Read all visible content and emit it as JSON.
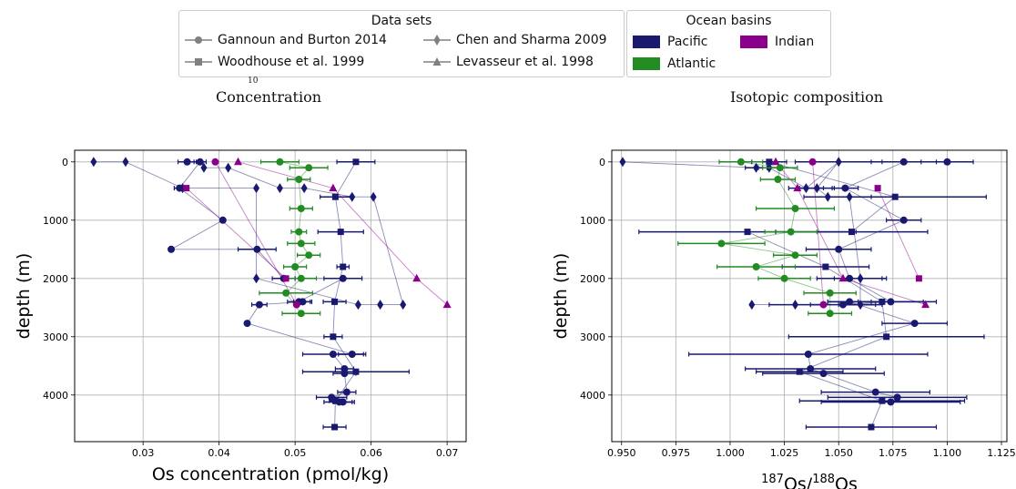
{
  "legend_datasets": {
    "title": "Data sets",
    "items": [
      {
        "label": "Gannoun and Burton 2014",
        "marker": "circle"
      },
      {
        "label": "Chen and Sharma 2009",
        "marker": "diamond"
      },
      {
        "label": "Woodhouse et al. 1999",
        "marker": "square"
      },
      {
        "label": "Levasseur et al. 1998",
        "marker": "triangle"
      }
    ]
  },
  "legend_basins": {
    "title": "Ocean basins",
    "items": [
      {
        "label": "Pacific",
        "color": "#191970"
      },
      {
        "label": "Indian",
        "color": "#8b008b"
      },
      {
        "label": "Atlantic",
        "color": "#228b22"
      }
    ]
  },
  "clipped_fragment": "10",
  "chart_data": [
    {
      "type": "scatter",
      "title": "Concentration",
      "xlabel": "Os concentration (pmol/kg)",
      "ylabel": "depth (m)",
      "xlim": [
        0.021,
        0.0725
      ],
      "ylim": [
        4800,
        -200
      ],
      "xticks": [
        "0.03",
        "0.04",
        "0.05",
        "0.06",
        "0.07"
      ],
      "yticks": [
        "0",
        "1000",
        "2000",
        "3000",
        "4000"
      ],
      "grid": true,
      "series": [
        {
          "marker": "diamond",
          "basin": "Pacific",
          "color": "#191970",
          "points": [
            {
              "x": 0.0235,
              "y": 0
            },
            {
              "x": 0.0277,
              "y": 0
            },
            {
              "x": 0.0352,
              "y": 450
            },
            {
              "x": 0.0449,
              "y": 450
            },
            {
              "x": 0.0449,
              "y": 2000
            },
            {
              "x": 0.0583,
              "y": 2450
            },
            {
              "x": 0.0612,
              "y": 2450
            },
            {
              "x": 0.0642,
              "y": 2450
            },
            {
              "x": 0.0603,
              "y": 600
            },
            {
              "x": 0.0575,
              "y": 600
            },
            {
              "x": 0.0512,
              "y": 450
            },
            {
              "x": 0.048,
              "y": 450
            },
            {
              "x": 0.0412,
              "y": 100
            },
            {
              "x": 0.038,
              "y": 100
            }
          ]
        },
        {
          "marker": "circle",
          "basin": "Pacific",
          "color": "#191970",
          "points": [
            {
              "x": 0.0358,
              "y": 0,
              "xerr": 0.0012
            },
            {
              "x": 0.0375,
              "y": 0,
              "xerr": 0.0008
            },
            {
              "x": 0.0348,
              "y": 450,
              "xerr": 0.0007
            },
            {
              "x": 0.0405,
              "y": 1000
            },
            {
              "x": 0.0337,
              "y": 1500
            },
            {
              "x": 0.045,
              "y": 1500,
              "xerr": 0.0025
            },
            {
              "x": 0.0485,
              "y": 2000,
              "xerr": 0.0015
            },
            {
              "x": 0.0563,
              "y": 2000,
              "xerr": 0.0025
            },
            {
              "x": 0.0505,
              "y": 2400,
              "xerr": 0.0015
            },
            {
              "x": 0.051,
              "y": 2400,
              "xerr": 0.0012
            },
            {
              "x": 0.0453,
              "y": 2450,
              "xerr": 0.001
            },
            {
              "x": 0.0437,
              "y": 2770
            },
            {
              "x": 0.0575,
              "y": 3300,
              "xerr": 0.0018
            },
            {
              "x": 0.055,
              "y": 3300,
              "xerr": 0.004
            },
            {
              "x": 0.0565,
              "y": 3550,
              "xerr": 0.0012
            },
            {
              "x": 0.0565,
              "y": 3630,
              "xerr": 0.0015
            },
            {
              "x": 0.0568,
              "y": 3950,
              "xerr": 0.0012
            },
            {
              "x": 0.0548,
              "y": 4040,
              "xerr": 0.002
            },
            {
              "x": 0.0558,
              "y": 4120,
              "xerr": 0.002
            },
            {
              "x": 0.0563,
              "y": 4120,
              "xerr": 0.0012
            }
          ]
        },
        {
          "marker": "square",
          "basin": "Pacific",
          "color": "#191970",
          "points": [
            {
              "x": 0.058,
              "y": 0,
              "xerr": 0.0025
            },
            {
              "x": 0.0553,
              "y": 600,
              "xerr": 0.002
            },
            {
              "x": 0.056,
              "y": 1200,
              "xerr": 0.003
            },
            {
              "x": 0.0563,
              "y": 1800,
              "xerr": 0.0008
            },
            {
              "x": 0.0552,
              "y": 2400,
              "xerr": 0.0015
            },
            {
              "x": 0.055,
              "y": 3000,
              "xerr": 0.0012
            },
            {
              "x": 0.058,
              "y": 3600,
              "xerr": 0.007
            },
            {
              "x": 0.0553,
              "y": 4100,
              "xerr": 0.0008
            },
            {
              "x": 0.0552,
              "y": 4550,
              "xerr": 0.0015
            }
          ]
        },
        {
          "marker": "circle",
          "basin": "Atlantic",
          "color": "#228b22",
          "points": [
            {
              "x": 0.048,
              "y": 0,
              "xerr": 0.0025
            },
            {
              "x": 0.0518,
              "y": 100,
              "xerr": 0.0025
            },
            {
              "x": 0.0505,
              "y": 300,
              "xerr": 0.0015
            },
            {
              "x": 0.0508,
              "y": 800,
              "xerr": 0.0015
            },
            {
              "x": 0.0505,
              "y": 1200,
              "xerr": 0.001
            },
            {
              "x": 0.0508,
              "y": 1400,
              "xerr": 0.0018
            },
            {
              "x": 0.0518,
              "y": 1600,
              "xerr": 0.0015
            },
            {
              "x": 0.05,
              "y": 1800,
              "xerr": 0.0015
            },
            {
              "x": 0.0508,
              "y": 2000,
              "xerr": 0.002
            },
            {
              "x": 0.0488,
              "y": 2250,
              "xerr": 0.0035
            },
            {
              "x": 0.0508,
              "y": 2600,
              "xerr": 0.0025
            }
          ]
        },
        {
          "marker": "circle",
          "basin": "Indian",
          "color": "#8b008b",
          "points": [
            {
              "x": 0.0395,
              "y": 0
            },
            {
              "x": 0.0502,
              "y": 2450
            }
          ]
        },
        {
          "marker": "triangle",
          "basin": "Indian",
          "color": "#8b008b",
          "points": [
            {
              "x": 0.0425,
              "y": 0
            },
            {
              "x": 0.055,
              "y": 450
            },
            {
              "x": 0.066,
              "y": 2000
            },
            {
              "x": 0.07,
              "y": 2450
            }
          ]
        },
        {
          "marker": "square",
          "basin": "Indian",
          "color": "#8b008b",
          "points": [
            {
              "x": 0.0357,
              "y": 450
            },
            {
              "x": 0.0488,
              "y": 2000
            }
          ]
        }
      ]
    },
    {
      "type": "scatter",
      "title": "Isotopic composition",
      "xlabel": "187Os/188Os",
      "ylabel": "depth (m)",
      "xlim": [
        0.9455,
        1.1275
      ],
      "ylim": [
        4800,
        -200
      ],
      "xticks": [
        "0.950",
        "0.975",
        "1.000",
        "1.025",
        "1.050",
        "1.075",
        "1.100",
        "1.125"
      ],
      "yticks": [
        "0",
        "1000",
        "2000",
        "3000",
        "4000"
      ],
      "grid": true,
      "series": [
        {
          "marker": "diamond",
          "basin": "Pacific",
          "color": "#191970",
          "points": [
            {
              "x": 0.9505,
              "y": 0
            },
            {
              "x": 1.012,
              "y": 100,
              "xerr": 0.005
            },
            {
              "x": 1.018,
              "y": 100,
              "xerr": 0.005
            },
            {
              "x": 1.035,
              "y": 450,
              "xerr": 0.008
            },
            {
              "x": 1.05,
              "y": 0,
              "xerr": 0.02
            },
            {
              "x": 1.04,
              "y": 450,
              "xerr": 0.008
            },
            {
              "x": 1.045,
              "y": 600
            },
            {
              "x": 1.055,
              "y": 600,
              "xerr": 0.01
            },
            {
              "x": 1.06,
              "y": 2000,
              "xerr": 0.012
            },
            {
              "x": 1.06,
              "y": 2450,
              "xerr": 0.01
            },
            {
              "x": 1.03,
              "y": 2450,
              "xerr": 0.012
            },
            {
              "x": 1.01,
              "y": 2450
            }
          ]
        },
        {
          "marker": "circle",
          "basin": "Pacific",
          "color": "#191970",
          "points": [
            {
              "x": 1.1,
              "y": 0,
              "xerr": 0.012
            },
            {
              "x": 1.08,
              "y": 0,
              "xerr": 0.015
            },
            {
              "x": 1.053,
              "y": 450,
              "xerr": 0.006
            },
            {
              "x": 1.08,
              "y": 1000,
              "xerr": 0.008
            },
            {
              "x": 1.05,
              "y": 1500,
              "xerr": 0.015
            },
            {
              "x": 1.055,
              "y": 2000,
              "xerr": 0.015
            },
            {
              "x": 1.074,
              "y": 2400,
              "xerr": 0.015
            },
            {
              "x": 1.052,
              "y": 2450,
              "xerr": 0.015
            },
            {
              "x": 1.055,
              "y": 2400,
              "xerr": 0.01
            },
            {
              "x": 1.085,
              "y": 2770,
              "xerr": 0.015
            },
            {
              "x": 1.036,
              "y": 3300,
              "xerr": 0.055
            },
            {
              "x": 1.037,
              "y": 3550,
              "xerr": 0.03
            },
            {
              "x": 1.043,
              "y": 3630,
              "xerr": 0.028
            },
            {
              "x": 1.067,
              "y": 3950,
              "xerr": 0.025
            },
            {
              "x": 1.077,
              "y": 4040,
              "xerr": 0.032
            },
            {
              "x": 1.074,
              "y": 4120,
              "xerr": 0.032
            }
          ]
        },
        {
          "marker": "square",
          "basin": "Pacific",
          "color": "#191970",
          "points": [
            {
              "x": 1.018,
              "y": 0,
              "xerr": 0.008
            },
            {
              "x": 1.076,
              "y": 600,
              "xerr": 0.042
            },
            {
              "x": 1.056,
              "y": 1200,
              "xerr": 0.035
            },
            {
              "x": 1.008,
              "y": 1200,
              "xerr": 0.05
            },
            {
              "x": 1.044,
              "y": 1800,
              "xerr": 0.02
            },
            {
              "x": 1.07,
              "y": 2400,
              "xerr": 0.025
            },
            {
              "x": 1.072,
              "y": 3000,
              "xerr": 0.045
            },
            {
              "x": 1.032,
              "y": 3600,
              "xerr": 0.02
            },
            {
              "x": 1.07,
              "y": 4100,
              "xerr": 0.038
            },
            {
              "x": 1.065,
              "y": 4550,
              "xerr": 0.03
            }
          ]
        },
        {
          "marker": "circle",
          "basin": "Atlantic",
          "color": "#228b22",
          "points": [
            {
              "x": 1.005,
              "y": 0,
              "xerr": 0.01
            },
            {
              "x": 1.023,
              "y": 100,
              "xerr": 0.008
            },
            {
              "x": 1.022,
              "y": 300,
              "xerr": 0.008
            },
            {
              "x": 1.03,
              "y": 800,
              "xerr": 0.018
            },
            {
              "x": 1.028,
              "y": 1200,
              "xerr": 0.012
            },
            {
              "x": 0.996,
              "y": 1400,
              "xerr": 0.02
            },
            {
              "x": 1.03,
              "y": 1600,
              "xerr": 0.01
            },
            {
              "x": 1.012,
              "y": 1800,
              "xerr": 0.018
            },
            {
              "x": 1.025,
              "y": 2000,
              "xerr": 0.012
            },
            {
              "x": 1.046,
              "y": 2250,
              "xerr": 0.012
            },
            {
              "x": 1.046,
              "y": 2600,
              "xerr": 0.01
            }
          ]
        },
        {
          "marker": "circle",
          "basin": "Indian",
          "color": "#8b008b",
          "points": [
            {
              "x": 1.038,
              "y": 0
            },
            {
              "x": 1.043,
              "y": 2450
            }
          ]
        },
        {
          "marker": "triangle",
          "basin": "Indian",
          "color": "#8b008b",
          "points": [
            {
              "x": 1.021,
              "y": 0
            },
            {
              "x": 1.031,
              "y": 450
            },
            {
              "x": 1.052,
              "y": 2000
            },
            {
              "x": 1.09,
              "y": 2450
            }
          ]
        },
        {
          "marker": "square",
          "basin": "Indian",
          "color": "#8b008b",
          "points": [
            {
              "x": 1.068,
              "y": 450
            },
            {
              "x": 1.087,
              "y": 2000
            }
          ]
        }
      ]
    }
  ]
}
